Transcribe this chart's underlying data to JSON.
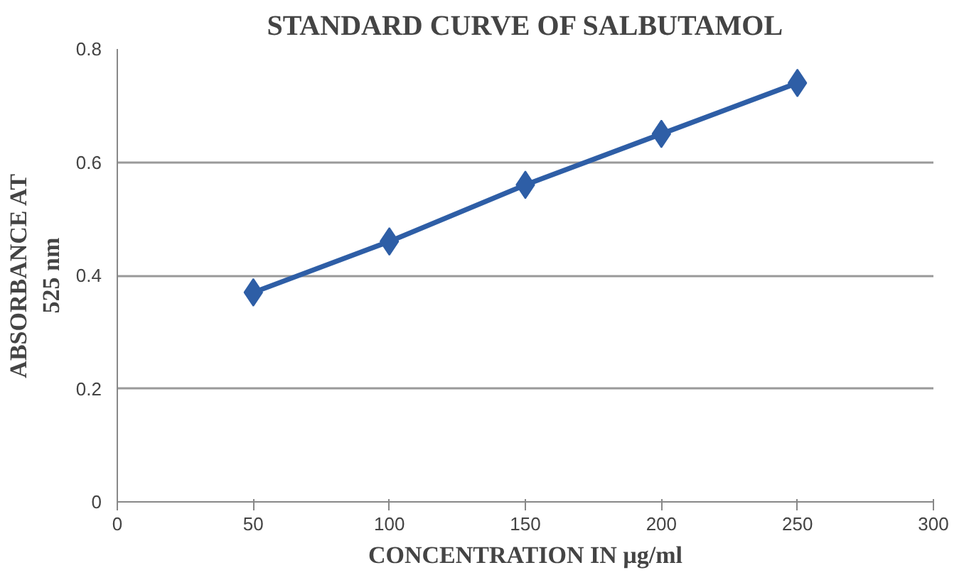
{
  "chart_data": {
    "type": "line",
    "title": "STANDARD CURVE OF SALBUTAMOL",
    "xlabel": "CONCENTRATION IN µg/ml",
    "ylabel": "ABSORBANCE AT\n525 nm",
    "x": [
      50,
      100,
      150,
      200,
      250
    ],
    "series": [
      {
        "color": "#2e5ea6",
        "values": [
          0.37,
          0.46,
          0.56,
          0.65,
          0.74
        ]
      }
    ],
    "xlim": [
      0,
      300
    ],
    "xticks": [
      0,
      50,
      100,
      150,
      200,
      250,
      300
    ],
    "ylim": [
      0,
      0.8
    ],
    "yticks": [
      0,
      0.2,
      0.4,
      0.6,
      0.8
    ],
    "grid": "y",
    "marker": "diamond",
    "line_style": "solid"
  }
}
